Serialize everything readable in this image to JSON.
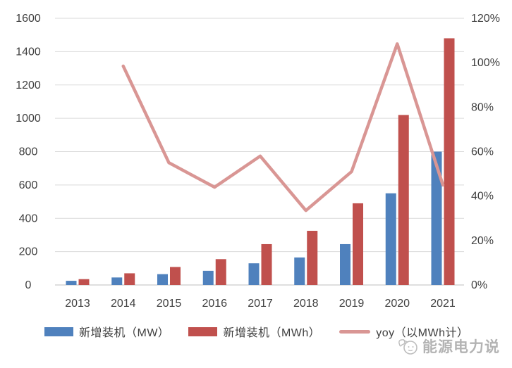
{
  "chart_data": {
    "type": "bar",
    "subtype": "combo-bar-line-dual-axis",
    "categories": [
      "2013",
      "2014",
      "2015",
      "2016",
      "2017",
      "2018",
      "2019",
      "2020",
      "2021"
    ],
    "series": [
      {
        "name": "新增装机（MW）",
        "type": "bar",
        "axis": "left",
        "color": "#4F81BD",
        "values": [
          25,
          45,
          65,
          85,
          130,
          165,
          245,
          550,
          800
        ]
      },
      {
        "name": "新增装机（MWh）",
        "type": "bar",
        "axis": "left",
        "color": "#C0504D",
        "values": [
          35,
          70,
          108,
          155,
          245,
          325,
          490,
          1020,
          1480
        ]
      },
      {
        "name": "yoy（以MWh计）",
        "type": "line",
        "axis": "right",
        "unit": "%",
        "color": "#D99694",
        "values": [
          null,
          98.5,
          55,
          44,
          58,
          33.5,
          51,
          108.5,
          45
        ]
      }
    ],
    "left_axis": {
      "min": 0,
      "max": 1600,
      "step": 200,
      "tick_labels": [
        "0",
        "200",
        "400",
        "600",
        "800",
        "1000",
        "1200",
        "1400",
        "1600"
      ]
    },
    "right_axis": {
      "min": 0,
      "max": 120,
      "step": 20,
      "unit": "%",
      "tick_labels": [
        "0%",
        "20%",
        "40%",
        "60%",
        "80%",
        "100%",
        "120%"
      ]
    },
    "title": "",
    "xlabel": "",
    "ylabel": "",
    "grid": "horizontal",
    "legend_position": "bottom",
    "colors": {
      "axis_label": "#404040",
      "gridline": "#D9D9D9",
      "axis_line": "#BFBFBF"
    }
  },
  "legend": {
    "items": [
      {
        "label": "新增装机（MW）",
        "swatch": "bar",
        "color": "#4F81BD"
      },
      {
        "label": "新增装机（MWh）",
        "swatch": "bar",
        "color": "#C0504D"
      },
      {
        "label": "yoy（以MWh计）",
        "swatch": "line",
        "color": "#D99694"
      }
    ]
  },
  "watermark": {
    "text": "能源电力说"
  }
}
